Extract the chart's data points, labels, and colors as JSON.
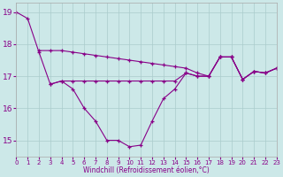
{
  "x": [
    0,
    1,
    2,
    3,
    4,
    5,
    6,
    7,
    8,
    9,
    10,
    11,
    12,
    13,
    14,
    15,
    16,
    17,
    18,
    19,
    20,
    21,
    22,
    23
  ],
  "line1_y": [
    19.0,
    18.8,
    17.75,
    16.75,
    16.85,
    16.6,
    16.0,
    15.6,
    15.0,
    15.0,
    14.8,
    14.85,
    15.6,
    16.3,
    16.6,
    17.1,
    17.0,
    17.0,
    17.6,
    17.6,
    16.9,
    17.15,
    17.1,
    17.25
  ],
  "line2_y": [
    null,
    null,
    17.8,
    17.8,
    17.8,
    17.75,
    17.7,
    17.65,
    17.6,
    17.55,
    17.5,
    17.45,
    17.4,
    17.35,
    17.3,
    17.25,
    17.1,
    17.0,
    17.6,
    17.6,
    16.9,
    17.15,
    17.1,
    17.25
  ],
  "line3_y": [
    null,
    null,
    null,
    16.75,
    16.85,
    16.85,
    16.85,
    16.85,
    16.85,
    16.85,
    16.85,
    16.85,
    16.85,
    16.85,
    16.85,
    17.1,
    17.0,
    17.0,
    17.6,
    17.6,
    16.9,
    17.15,
    17.1,
    17.25
  ],
  "bg_color": "#cce8e8",
  "line_color": "#880088",
  "grid_color": "#aacccc",
  "xlabel": "Windchill (Refroidissement éolien,°C)",
  "xlim": [
    0,
    23
  ],
  "ylim": [
    14.5,
    19.3
  ],
  "yticks": [
    15,
    16,
    17,
    18,
    19
  ],
  "xticks": [
    0,
    1,
    2,
    3,
    4,
    5,
    6,
    7,
    8,
    9,
    10,
    11,
    12,
    13,
    14,
    15,
    16,
    17,
    18,
    19,
    20,
    21,
    22,
    23
  ]
}
